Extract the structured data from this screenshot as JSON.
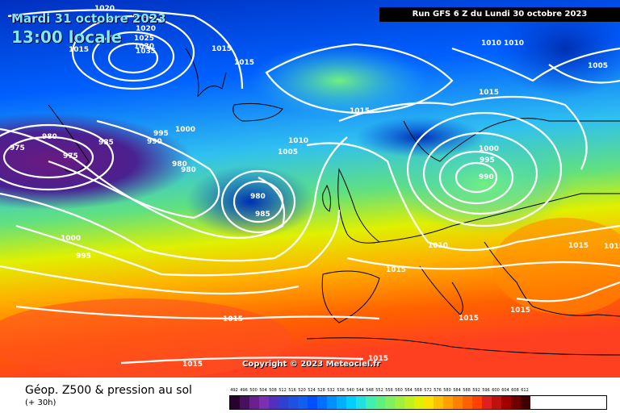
{
  "header": {
    "date": "Mardi 31 octobre 2023",
    "local_time": "13:00 locale",
    "run": "Run GFS 6 Z du Lundi 30 octobre 2023"
  },
  "copyright": "Copyright © 2023 Meteociel.fr",
  "footer": {
    "title": "Géop. Z500 & pression au sol",
    "subtitle": "(+ 30h)"
  },
  "legend": {
    "values": [
      "492",
      "496",
      "500",
      "504",
      "508",
      "512",
      "516",
      "520",
      "524",
      "528",
      "532",
      "536",
      "540",
      "544",
      "548",
      "552",
      "556",
      "560",
      "564",
      "568",
      "572",
      "576",
      "580",
      "584",
      "588",
      "592",
      "596",
      "600",
      "604",
      "608",
      "612"
    ],
    "colors": [
      "#2a0030",
      "#4a1060",
      "#6a2090",
      "#7a30b0",
      "#5030c0",
      "#3040d0",
      "#2050e0",
      "#1060f0",
      "#0050ff",
      "#0070ff",
      "#0090ff",
      "#00b0ff",
      "#00d0ff",
      "#20e0e0",
      "#40f0b0",
      "#60f080",
      "#80f060",
      "#a0f040",
      "#c0f020",
      "#e0f000",
      "#ffe000",
      "#ffc000",
      "#ffa000",
      "#ff8000",
      "#ff6000",
      "#ff4000",
      "#e02020",
      "#c01010",
      "#a00000",
      "#700000",
      "#400000"
    ]
  },
  "isobars": [
    {
      "label": "1020",
      "pos": "a"
    },
    {
      "label": "1020",
      "pos": "b"
    },
    {
      "label": "1025",
      "pos": "c"
    },
    {
      "label": "1030",
      "pos": "d"
    },
    {
      "label": "1035",
      "pos": "e"
    },
    {
      "label": "1015",
      "pos": "f"
    },
    {
      "label": "1015",
      "pos": "g"
    },
    {
      "label": "1015",
      "pos": "h"
    },
    {
      "label": "1010",
      "pos": "i"
    },
    {
      "label": "1005",
      "pos": "j"
    },
    {
      "label": "1015",
      "pos": "k"
    },
    {
      "label": "1015",
      "pos": "l"
    },
    {
      "label": "1010",
      "pos": "m"
    },
    {
      "label": "1005",
      "pos": "n"
    },
    {
      "label": "1000",
      "pos": "o"
    },
    {
      "label": "995",
      "pos": "p"
    },
    {
      "label": "990",
      "pos": "q"
    },
    {
      "label": "985",
      "pos": "r"
    },
    {
      "label": "980",
      "pos": "s"
    },
    {
      "label": "975",
      "pos": "t"
    },
    {
      "label": "975",
      "pos": "u"
    },
    {
      "label": "980",
      "pos": "v"
    },
    {
      "label": "980",
      "pos": "w"
    },
    {
      "label": "980",
      "pos": "x"
    },
    {
      "label": "985",
      "pos": "y"
    },
    {
      "label": "1000",
      "pos": "z"
    },
    {
      "label": "995",
      "pos": "aa"
    },
    {
      "label": "1000",
      "pos": "ab"
    },
    {
      "label": "995",
      "pos": "ac"
    },
    {
      "label": "990",
      "pos": "ad"
    },
    {
      "label": "1010",
      "pos": "ae"
    },
    {
      "label": "1015",
      "pos": "af"
    },
    {
      "label": "1015",
      "pos": "ag"
    },
    {
      "label": "1015",
      "pos": "ah"
    },
    {
      "label": "1015",
      "pos": "ai"
    },
    {
      "label": "1015",
      "pos": "aj"
    },
    {
      "label": "1015",
      "pos": "ak"
    },
    {
      "label": "1015",
      "pos": "al"
    },
    {
      "label": "1015",
      "pos": "am"
    },
    {
      "label": "1010",
      "pos": "an"
    }
  ]
}
